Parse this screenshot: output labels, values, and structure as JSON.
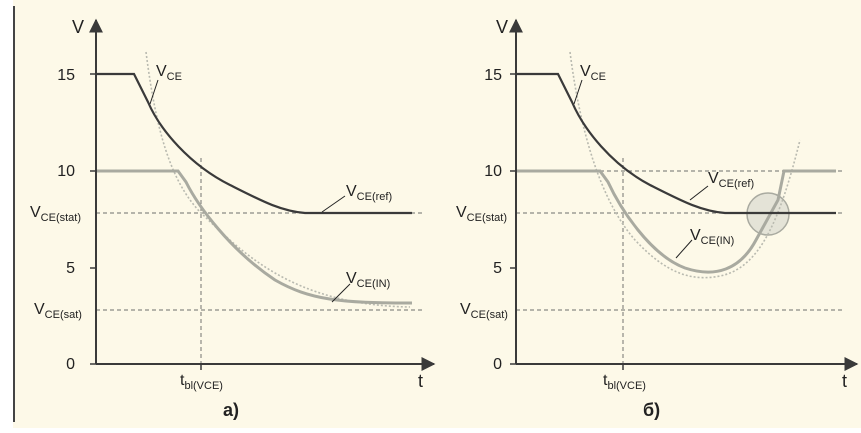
{
  "colors": {
    "background": "#fdf9e8",
    "axis": "#3a3a3a",
    "vce_ref_curve": "#3a3a3a",
    "vce_in_curve": "#a9aaa0",
    "dotted_curve": "#b9bab0",
    "dashed_guides": "#8a8a84",
    "highlight_circle": "#d3d3cb",
    "left_rule": "#444444"
  },
  "diagrams": [
    {
      "caption": "а)",
      "y_axis_symbol": "V",
      "x_axis_symbol": "t",
      "y_ticks": [
        "15",
        "10",
        "5",
        "0"
      ],
      "vce_stat_label": {
        "main": "V",
        "sub": "CE(stat)"
      },
      "vce_sat_label": {
        "main": "V",
        "sub": "CE(sat)"
      },
      "t_blanking_label": {
        "main": "t",
        "sub": "bl(VCE)"
      },
      "curves": [
        {
          "label_main": "V",
          "label_sub": "CE"
        },
        {
          "label_main": "V",
          "label_sub": "CE(ref)"
        },
        {
          "label_main": "V",
          "label_sub": "CE(IN)"
        }
      ]
    },
    {
      "caption": "б)",
      "y_axis_symbol": "V",
      "x_axis_symbol": "t",
      "y_ticks": [
        "15",
        "10",
        "5",
        "0"
      ],
      "vce_stat_label": {
        "main": "V",
        "sub": "CE(stat)"
      },
      "vce_sat_label": {
        "main": "V",
        "sub": "CE(sat)"
      },
      "t_blanking_label": {
        "main": "t",
        "sub": "bl(VCE)"
      },
      "curves": [
        {
          "label_main": "V",
          "label_sub": "CE"
        },
        {
          "label_main": "V",
          "label_sub": "CE(ref)"
        },
        {
          "label_main": "V",
          "label_sub": "CE(IN)"
        }
      ]
    }
  ]
}
